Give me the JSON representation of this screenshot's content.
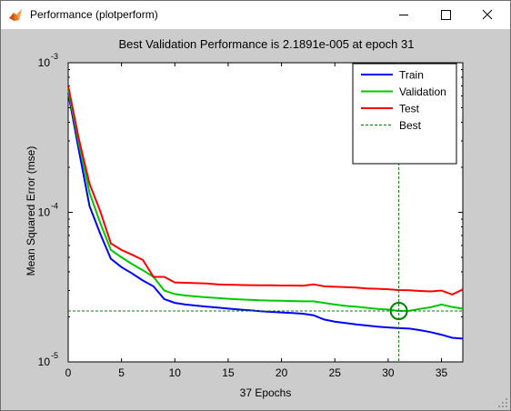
{
  "window": {
    "title": "Performance (plotperform)",
    "app_icon": "matlab-icon",
    "buttons": {
      "minimize": "minimize-icon",
      "maximize": "maximize-icon",
      "close": "close-icon"
    }
  },
  "colors": {
    "figure_background": "#cccccc",
    "axes_background": "#ffffff",
    "train": "#0000ff",
    "validation": "#00c800",
    "test": "#ff0000",
    "best": "#008000"
  },
  "chart_data": {
    "type": "line",
    "title": "Best Validation Performance is 2.1891e-005 at epoch 31",
    "xlabel": "37 Epochs",
    "ylabel": "Mean Squared Error  (mse)",
    "xlim": [
      0,
      37
    ],
    "ylim": [
      1e-05,
      0.001
    ],
    "yscale": "log",
    "grid": false,
    "legend_position": "top-right",
    "xticks": [
      0,
      5,
      10,
      15,
      20,
      25,
      30,
      35
    ],
    "yticks": [
      {
        "value": 0.001,
        "base": "10",
        "exp": "-3"
      },
      {
        "value": 0.0001,
        "base": "10",
        "exp": "-4"
      },
      {
        "value": 1e-05,
        "base": "10",
        "exp": "-5"
      }
    ],
    "x": [
      0,
      1,
      2,
      3,
      4,
      5,
      6,
      7,
      8,
      9,
      10,
      11,
      12,
      13,
      14,
      15,
      16,
      17,
      18,
      19,
      20,
      21,
      22,
      23,
      24,
      25,
      26,
      27,
      28,
      29,
      30,
      31,
      32,
      33,
      34,
      35,
      36,
      37
    ],
    "series": [
      {
        "name": "Train",
        "color": "#0000ff",
        "values": [
          0.00063,
          0.00026,
          0.00011,
          7.2e-05,
          4.9e-05,
          4.3e-05,
          3.9e-05,
          3.5e-05,
          3.2e-05,
          2.63e-05,
          2.48e-05,
          2.42e-05,
          2.38e-05,
          2.34e-05,
          2.31e-05,
          2.27e-05,
          2.24e-05,
          2.21e-05,
          2.18e-05,
          2.16e-05,
          2.14e-05,
          2.12e-05,
          2.1e-05,
          2.05e-05,
          1.92e-05,
          1.86e-05,
          1.82e-05,
          1.78e-05,
          1.75e-05,
          1.72e-05,
          1.7e-05,
          1.68e-05,
          1.67e-05,
          1.63e-05,
          1.58e-05,
          1.52e-05,
          1.45e-05,
          1.43e-05
        ]
      },
      {
        "name": "Validation",
        "color": "#00c800",
        "values": [
          0.00066,
          0.00029,
          0.000135,
          8.5e-05,
          5.6e-05,
          5e-05,
          4.5e-05,
          4.1e-05,
          3.7e-05,
          3e-05,
          2.84e-05,
          2.78e-05,
          2.74e-05,
          2.7e-05,
          2.67e-05,
          2.64e-05,
          2.62e-05,
          2.6e-05,
          2.58e-05,
          2.57e-05,
          2.56e-05,
          2.55e-05,
          2.54e-05,
          2.54e-05,
          2.48e-05,
          2.42e-05,
          2.37e-05,
          2.34e-05,
          2.3e-05,
          2.26e-05,
          2.24e-05,
          2.1891e-05,
          2.2e-05,
          2.26e-05,
          2.32e-05,
          2.42e-05,
          2.33e-05,
          2.27e-05
        ]
      },
      {
        "name": "Test",
        "color": "#ff0000",
        "values": [
          0.0007,
          0.00031,
          0.000155,
          0.000102,
          6.2e-05,
          5.6e-05,
          5.2e-05,
          4.8e-05,
          3.7e-05,
          3.7e-05,
          3.4e-05,
          3.38e-05,
          3.36e-05,
          3.34e-05,
          3.3e-05,
          3.28e-05,
          3.27e-05,
          3.26e-05,
          3.25e-05,
          3.25e-05,
          3.24e-05,
          3.24e-05,
          3.23e-05,
          3.3e-05,
          3.2e-05,
          3.18e-05,
          3.16e-05,
          3.14e-05,
          3.1e-05,
          3.08e-05,
          3.06e-05,
          3.02e-05,
          3.01e-05,
          2.98e-05,
          2.96e-05,
          3e-05,
          2.82e-05,
          3.05e-05
        ]
      }
    ],
    "best": {
      "name": "Best",
      "epoch": 31,
      "value": 2.1891e-05,
      "color": "#008000"
    }
  }
}
